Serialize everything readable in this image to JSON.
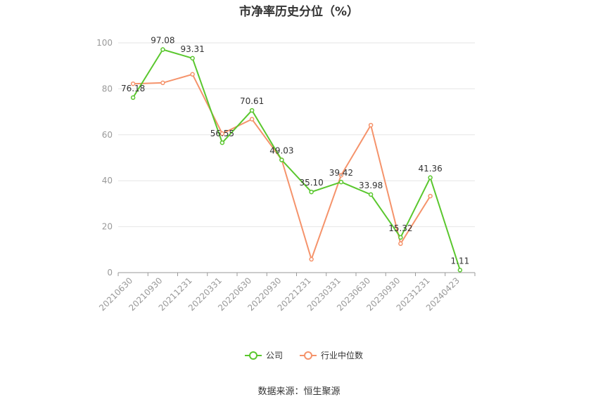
{
  "chart_data": {
    "type": "line",
    "title": "市净率历史分位（%）",
    "categories": [
      "20210630",
      "20210930",
      "20211231",
      "20220331",
      "20220630",
      "20220930",
      "20221231",
      "20230331",
      "20230630",
      "20230930",
      "20231231",
      "20240423"
    ],
    "ylim": [
      0,
      100
    ],
    "yticks": [
      0,
      20,
      40,
      60,
      80,
      100
    ],
    "grid": true,
    "legend_position": "bottom-center",
    "series": [
      {
        "name": "公司",
        "color": "#5ac72e",
        "values": [
          76.18,
          97.08,
          93.31,
          56.55,
          70.61,
          49.03,
          35.1,
          39.42,
          33.98,
          15.32,
          41.36,
          1.11
        ],
        "labels": [
          "76.18",
          "97.08",
          "93.31",
          "56.55",
          "70.61",
          "49.03",
          "35.10",
          "39.42",
          "33.98",
          "15.32",
          "41.36",
          "1.11"
        ]
      },
      {
        "name": "行业中位数",
        "color": "#f5936b",
        "values": [
          82.2,
          82.6,
          86.3,
          60.5,
          66.8,
          49.1,
          5.8,
          42.4,
          64.2,
          12.6,
          33.3,
          null
        ]
      }
    ]
  },
  "source_text": "数据来源：恒生聚源"
}
